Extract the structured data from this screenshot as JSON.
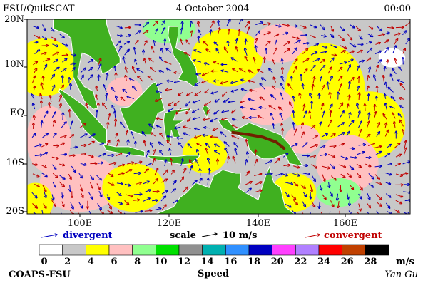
{
  "header": {
    "left": "FSU/QuikSCAT",
    "center": "4 October 2004",
    "right": "00:00"
  },
  "lat_labels": [
    "20N",
    "10N",
    "EQ",
    "10S",
    "20S"
  ],
  "lon_labels": [
    "100E",
    "120E",
    "140E",
    "160E"
  ],
  "legend": {
    "divergent": "divergent",
    "scale": "scale",
    "scale_value": "10 m/s",
    "convergent": "convergent"
  },
  "colorbar": {
    "labels": [
      0,
      2,
      4,
      6,
      8,
      10,
      12,
      14,
      16,
      18,
      20,
      22,
      24,
      26,
      28
    ],
    "unit": "m/s",
    "title": "Speed",
    "colors": [
      "#ffffff",
      "#c8c8c8",
      "#ffff00",
      "#ffc0c0",
      "#90ff90",
      "#00e000",
      "#909090",
      "#00b0b0",
      "#3090ff",
      "#0000c0",
      "#ff40ff",
      "#b080ff",
      "#ff0000",
      "#c04000",
      "#000000"
    ]
  },
  "footer": {
    "left": "COAPS-FSU",
    "right": "Yan Gu"
  }
}
